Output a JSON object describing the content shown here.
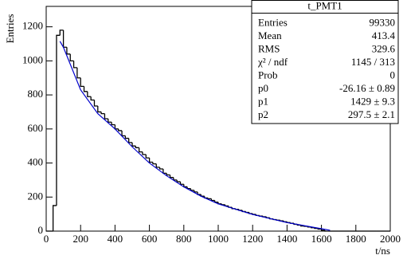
{
  "chart_data": {
    "type": "histogram",
    "xlabel": "t/ns",
    "ylabel": "Entries",
    "bins": [
      0,
      20,
      40,
      60,
      80,
      100,
      120,
      140,
      160,
      180,
      200,
      220,
      240,
      260,
      280,
      300,
      320,
      340,
      360,
      380,
      400,
      420,
      440,
      460,
      480,
      500,
      520,
      540,
      560,
      580,
      600,
      620,
      640,
      660,
      680,
      700,
      720,
      740,
      760,
      780,
      800,
      820,
      840,
      860,
      880,
      900,
      920,
      940,
      960,
      980,
      1000,
      1020,
      1040,
      1060,
      1080,
      1100,
      1120,
      1140,
      1160,
      1180,
      1200,
      1220,
      1240,
      1260,
      1280,
      1300,
      1320,
      1340,
      1360,
      1380,
      1400,
      1420,
      1440,
      1460,
      1480,
      1500,
      1520,
      1540,
      1560,
      1580,
      1600,
      1620,
      1640,
      1660,
      1680,
      1700,
      1720,
      1740,
      1760,
      1780,
      1800,
      1820,
      1840,
      1860,
      1880,
      1900,
      1920,
      1940,
      1960,
      1980,
      2000
    ],
    "values": [
      0,
      0,
      150,
      1150,
      1180,
      1080,
      1040,
      1000,
      960,
      900,
      850,
      820,
      790,
      770,
      735,
      700,
      690,
      660,
      640,
      625,
      600,
      590,
      560,
      545,
      520,
      500,
      490,
      465,
      450,
      430,
      405,
      395,
      375,
      365,
      340,
      330,
      315,
      300,
      290,
      275,
      260,
      250,
      240,
      230,
      215,
      205,
      195,
      190,
      180,
      170,
      160,
      155,
      148,
      140,
      132,
      128,
      122,
      115,
      110,
      103,
      98,
      92,
      88,
      84,
      78,
      72,
      68,
      64,
      60,
      55,
      50,
      46,
      40,
      35,
      30,
      28,
      24,
      20,
      16,
      12,
      5,
      0,
      0,
      0,
      0,
      0,
      0,
      0,
      0,
      0,
      0,
      0,
      0,
      0,
      0,
      0,
      0,
      0,
      0,
      0
    ],
    "color": "#000000",
    "fit": {
      "color": "#0000cc",
      "x": [
        80,
        100,
        200,
        300,
        400,
        500,
        600,
        700,
        800,
        900,
        1000,
        1200,
        1400,
        1600,
        1650
      ],
      "y": [
        1115,
        1080,
        830,
        690,
        600,
        495,
        400,
        325,
        260,
        205,
        160,
        98,
        50,
        14,
        5
      ]
    },
    "xlim": [
      0,
      2000
    ],
    "xticks": [
      0,
      200,
      400,
      600,
      800,
      1000,
      1200,
      1400,
      1600,
      1800,
      2000
    ],
    "ylim": [
      0,
      1320
    ],
    "yticks": [
      0,
      200,
      400,
      600,
      800,
      1000,
      1200
    ],
    "stats": {
      "title": "t_PMT1",
      "rows": [
        [
          "Entries",
          "99330"
        ],
        [
          "Mean",
          "413.4"
        ],
        [
          "RMS",
          "329.6"
        ],
        [
          "χ² / ndf",
          "1145 / 313"
        ],
        [
          "Prob",
          "0"
        ],
        [
          "p0",
          "-26.16 ± 0.89"
        ],
        [
          "p1",
          "1429 ± 9.3"
        ],
        [
          "p2",
          "297.5 ± 2.1"
        ]
      ]
    }
  }
}
